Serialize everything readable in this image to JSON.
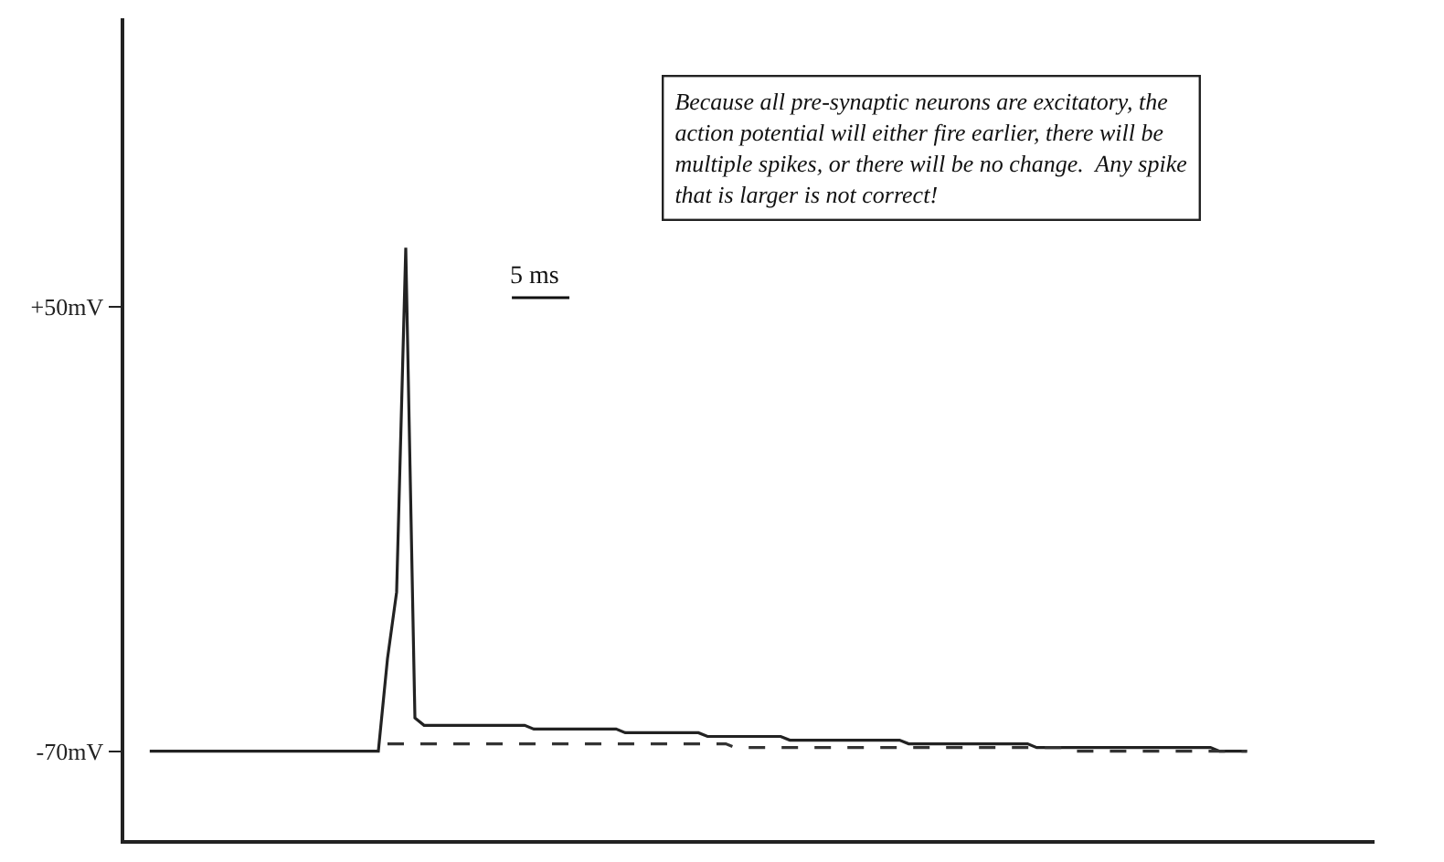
{
  "chart_data": {
    "type": "line",
    "categories": [
      null,
      null,
      null,
      null,
      null,
      null,
      null,
      null,
      null,
      null,
      null,
      null,
      null,
      null,
      null,
      null,
      null,
      null,
      null,
      null,
      null,
      null,
      null,
      null,
      null,
      null,
      null,
      null,
      null,
      null,
      null,
      null,
      null,
      null,
      null,
      null,
      null,
      null,
      null,
      null,
      null,
      null,
      null,
      null,
      null,
      null,
      null,
      null,
      null,
      null,
      null,
      null,
      null,
      null,
      null,
      null,
      null,
      null,
      null,
      null,
      null,
      null,
      null,
      null,
      null,
      null,
      null,
      null,
      null,
      null,
      null,
      null,
      null,
      null,
      null,
      null,
      null,
      null,
      null,
      null,
      null,
      null,
      null,
      null,
      null,
      null,
      null,
      null,
      null,
      null,
      null,
      null,
      null,
      null,
      null,
      null,
      null,
      null,
      null,
      null,
      null,
      null,
      null,
      null,
      null,
      null,
      null,
      null,
      null,
      null,
      null,
      null,
      null,
      null,
      null,
      null,
      null,
      null,
      null,
      null,
      null
    ],
    "series": [
      {
        "color": "#222222",
        "line_style": "solid",
        "values": [
          -70,
          -70,
          -70,
          -70,
          -70,
          -70,
          -70,
          -70,
          -70,
          -70,
          -70,
          -70,
          -70,
          -70,
          -70,
          -70,
          -70,
          -70,
          -70,
          -70,
          -70,
          -70,
          -70,
          -70,
          -70,
          -70,
          -45,
          -27,
          66,
          -61,
          -63,
          -63,
          -63,
          -63,
          -63,
          -63,
          -63,
          -63,
          -63,
          -63,
          -63,
          -63,
          -64,
          -64,
          -64,
          -64,
          -64,
          -64,
          -64,
          -64,
          -64,
          -64,
          -65,
          -65,
          -65,
          -65,
          -65,
          -65,
          -65,
          -65,
          -65,
          -66,
          -66,
          -66,
          -66,
          -66,
          -66,
          -66,
          -66,
          -66,
          -67,
          -67,
          -67,
          -67,
          -67,
          -67,
          -67,
          -67,
          -67,
          -67,
          -67,
          -67,
          -67,
          -68,
          -68,
          -68,
          -68,
          -68,
          -68,
          -68,
          -68,
          -68,
          -68,
          -68,
          -68,
          -68,
          -68,
          -69,
          -69,
          -69,
          -69,
          -69,
          -69,
          -69,
          -69,
          -69,
          -69,
          -69,
          -69,
          -69,
          -69,
          -69,
          -69,
          -69,
          -69,
          -69,
          -69,
          -70,
          -70,
          -70,
          -70
        ]
      },
      {
        "color": "#333333",
        "line_style": "dashed",
        "values": [
          null,
          null,
          null,
          null,
          null,
          null,
          null,
          null,
          null,
          null,
          null,
          null,
          null,
          null,
          null,
          null,
          null,
          null,
          null,
          null,
          null,
          null,
          null,
          null,
          null,
          null,
          -68,
          -68,
          -68,
          -68,
          -68,
          -68,
          -68,
          -68,
          -68,
          -68,
          -68,
          -68,
          -68,
          -68,
          -68,
          -68,
          -68,
          -68,
          -68,
          -68,
          -68,
          -68,
          -68,
          -68,
          -68,
          -68,
          -68,
          -68,
          -68,
          -68,
          -68,
          -68,
          -68,
          -68,
          -68,
          -68,
          -68,
          -68,
          -69,
          -69,
          -69,
          -69,
          -69,
          -69,
          -69,
          -69,
          -69,
          -69,
          -69,
          -69,
          -69,
          -69,
          -69,
          -69,
          -69,
          -69,
          -69,
          -69,
          -69,
          -69,
          -69,
          -69,
          -69,
          -69,
          -69,
          -69,
          -69,
          -69,
          -69,
          -69,
          -69,
          -69,
          -69,
          -69,
          -69,
          -70,
          -70,
          -70,
          -70,
          -70,
          -70,
          -70,
          -70,
          -70,
          -70,
          -70,
          -70,
          -70,
          -70,
          -70,
          -70,
          -70,
          -70,
          -70,
          -70
        ]
      }
    ],
    "ylim": [
      -94,
      128
    ],
    "yticks": [
      {
        "value": 50,
        "label": "+50mV"
      },
      {
        "value": -70,
        "label": "-70mV"
      }
    ],
    "tick_labels": "y",
    "annotations": [
      "Because all pre-synaptic neurons are excitatory, the action potential will either fire earlier, there will be multiple spikes, or there will be no change.  Any spike that is larger is not correct!",
      "5 ms"
    ]
  }
}
